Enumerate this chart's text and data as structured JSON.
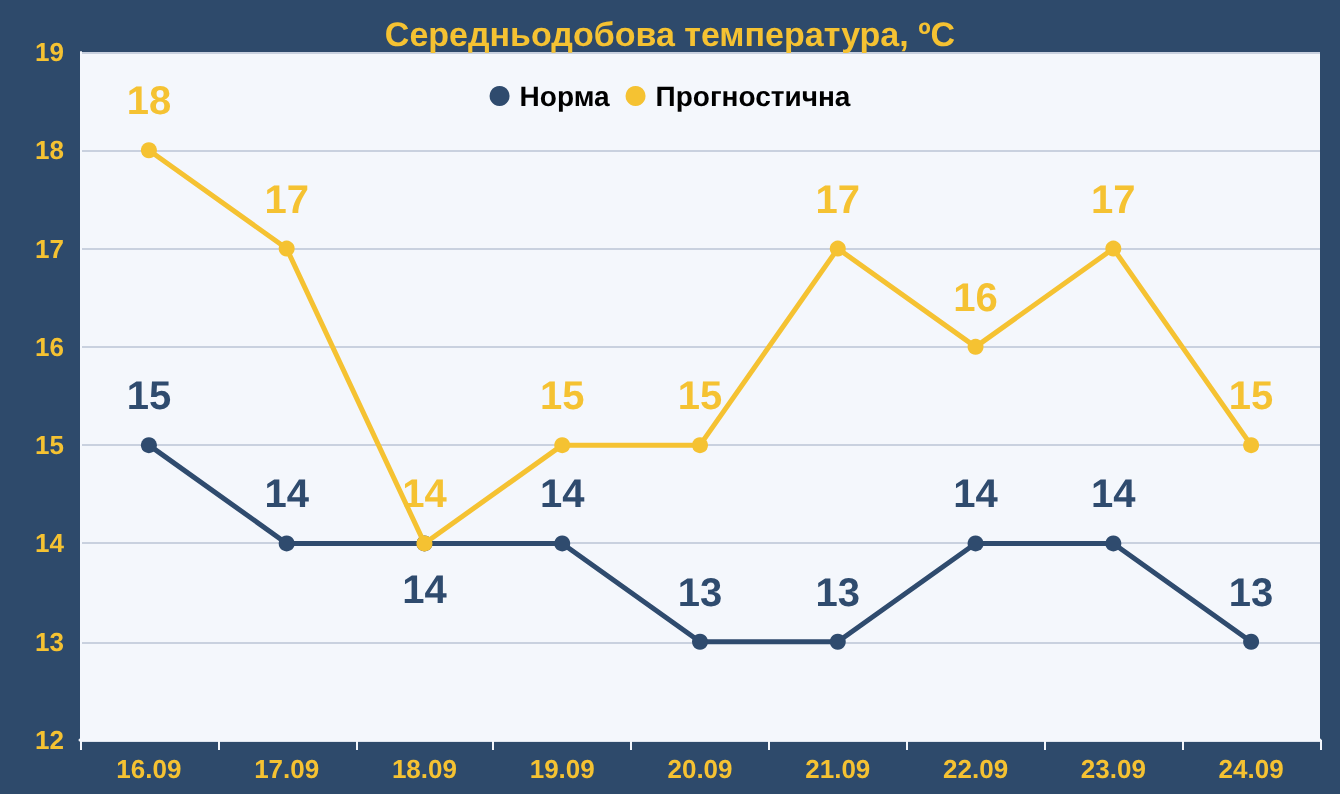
{
  "chart_data": {
    "type": "line",
    "title": "Середньодобова температура, ºC",
    "categories": [
      "16.09",
      "17.09",
      "18.09",
      "19.09",
      "20.09",
      "21.09",
      "22.09",
      "23.09",
      "24.09"
    ],
    "series": [
      {
        "name": "Норма",
        "color": "#2f4b6e",
        "values": [
          15,
          14,
          14,
          14,
          13,
          13,
          14,
          14,
          13
        ]
      },
      {
        "name": "Прогностична",
        "color": "#f5c232",
        "values": [
          18,
          17,
          14,
          15,
          15,
          17,
          16,
          17,
          15
        ]
      }
    ],
    "ylim": [
      12,
      19
    ],
    "yticks": [
      12,
      13,
      14,
      15,
      16,
      17,
      18,
      19
    ],
    "grid": "y",
    "legend": "top",
    "marker": "circle",
    "line_style": "solid",
    "data_labels": true
  }
}
